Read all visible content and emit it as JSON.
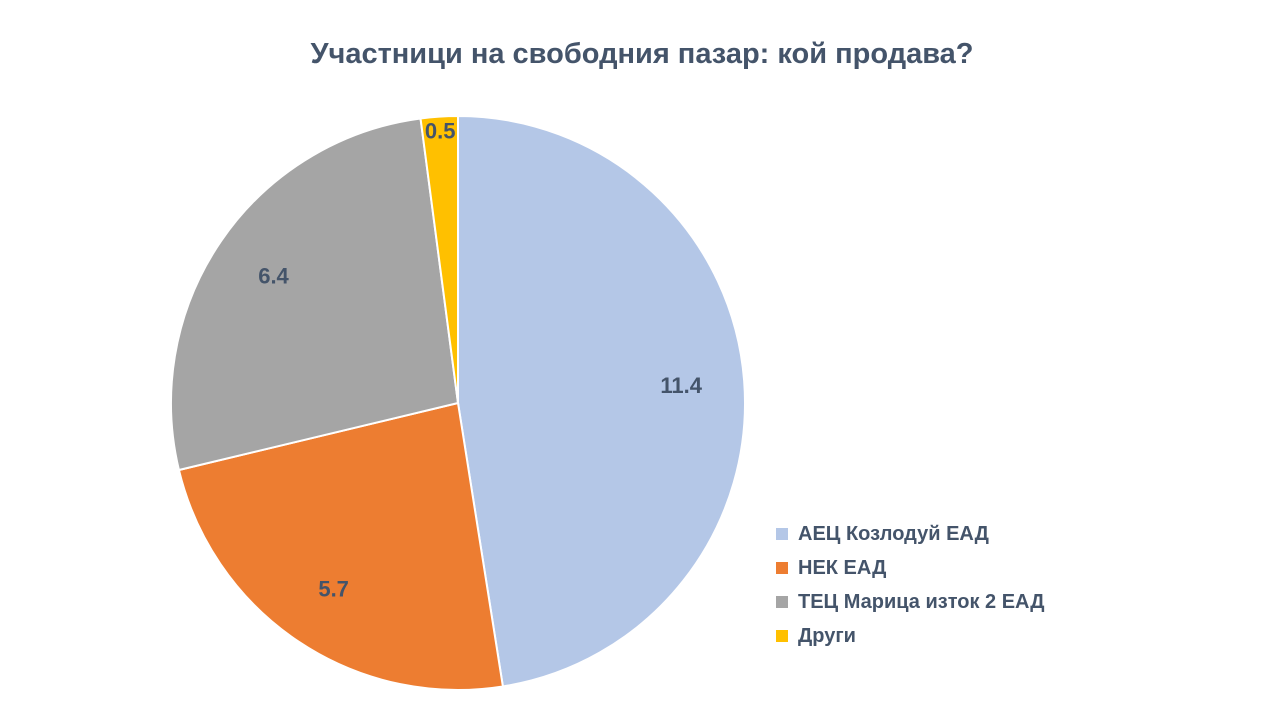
{
  "chart_data": {
    "type": "pie",
    "title": "Участници на свободния пазар: кой продава?",
    "legend_position": "right",
    "slices": [
      {
        "name": "АЕЦ Козлодуй ЕАД",
        "value": 11.4,
        "label": "11.4",
        "color": "#b4c7e7"
      },
      {
        "name": "НЕК ЕАД",
        "value": 5.7,
        "label": "5.7",
        "color": "#ed7d31"
      },
      {
        "name": "ТЕЦ Марица изток 2 ЕАД",
        "value": 6.4,
        "label": "6.4",
        "color": "#a5a5a5"
      },
      {
        "name": "Други",
        "value": 0.5,
        "label": "0.5",
        "color": "#ffc000"
      }
    ]
  }
}
